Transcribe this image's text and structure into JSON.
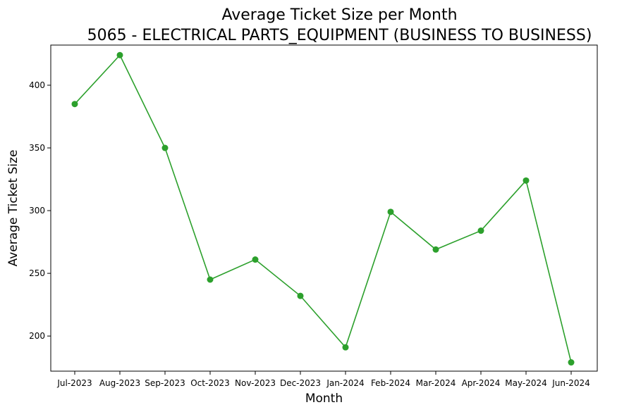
{
  "chart_data": {
    "type": "line",
    "title": "Average Ticket Size per Month",
    "subtitle": "5065 - ELECTRICAL PARTS_EQUIPMENT (BUSINESS TO BUSINESS)",
    "xlabel": "Month",
    "ylabel": "Average Ticket Size",
    "categories": [
      "Jul-2023",
      "Aug-2023",
      "Sep-2023",
      "Oct-2023",
      "Nov-2023",
      "Dec-2023",
      "Jan-2024",
      "Feb-2024",
      "Mar-2024",
      "Apr-2024",
      "May-2024",
      "Jun-2024"
    ],
    "series": [
      {
        "values": [
          385,
          424,
          350,
          245,
          261,
          232,
          191,
          299,
          269,
          284,
          324,
          179
        ],
        "color": "#2ca02c",
        "marker": "circle"
      }
    ],
    "yticks": [
      200,
      250,
      300,
      350,
      400
    ],
    "ylim": [
      172,
      432
    ],
    "grid": false,
    "legend": "none"
  }
}
